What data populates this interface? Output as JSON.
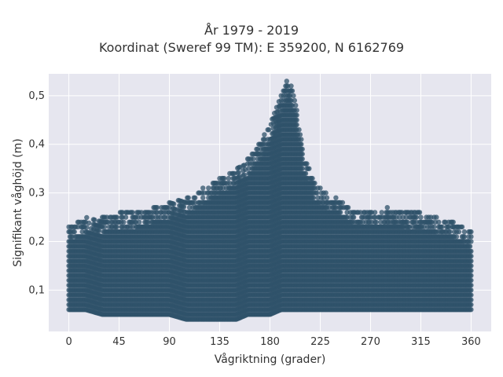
{
  "chart_data": {
    "type": "scatter",
    "title_lines": [
      "År 1979 - 2019",
      "Koordinat (Sweref 99 TM): E 359200, N 6162769"
    ],
    "xlabel": "Vågriktning (grader)",
    "ylabel": "Signifikant våghöjd (m)",
    "xlim": [
      -18,
      378
    ],
    "ylim": [
      0.015,
      0.545
    ],
    "xticks": [
      0,
      45,
      90,
      135,
      180,
      225,
      270,
      315,
      360
    ],
    "yticks": [
      0.1,
      0.2,
      0.3,
      0.4,
      0.5
    ],
    "ytick_labels": [
      "0,1",
      "0,2",
      "0,3",
      "0,4",
      "0,5"
    ],
    "grid": true,
    "colors": {
      "marker": "#2f5169",
      "plot_bg": "#e6e6ef",
      "grid": "#ffffff"
    },
    "envelope": {
      "x": [
        0,
        15,
        30,
        45,
        60,
        75,
        90,
        105,
        120,
        135,
        150,
        160,
        170,
        180,
        190,
        195,
        200,
        205,
        210,
        220,
        230,
        240,
        255,
        270,
        285,
        300,
        315,
        330,
        345,
        360
      ],
      "y_max": [
        0.23,
        0.25,
        0.25,
        0.26,
        0.26,
        0.27,
        0.28,
        0.29,
        0.31,
        0.33,
        0.35,
        0.37,
        0.4,
        0.44,
        0.5,
        0.53,
        0.52,
        0.46,
        0.38,
        0.32,
        0.3,
        0.29,
        0.27,
        0.26,
        0.27,
        0.26,
        0.26,
        0.25,
        0.24,
        0.22
      ],
      "y_min": [
        0.06,
        0.06,
        0.05,
        0.05,
        0.05,
        0.05,
        0.05,
        0.04,
        0.04,
        0.04,
        0.04,
        0.05,
        0.05,
        0.05,
        0.06,
        0.06,
        0.06,
        0.06,
        0.06,
        0.06,
        0.06,
        0.06,
        0.06,
        0.06,
        0.06,
        0.06,
        0.06,
        0.06,
        0.06,
        0.06
      ]
    }
  }
}
